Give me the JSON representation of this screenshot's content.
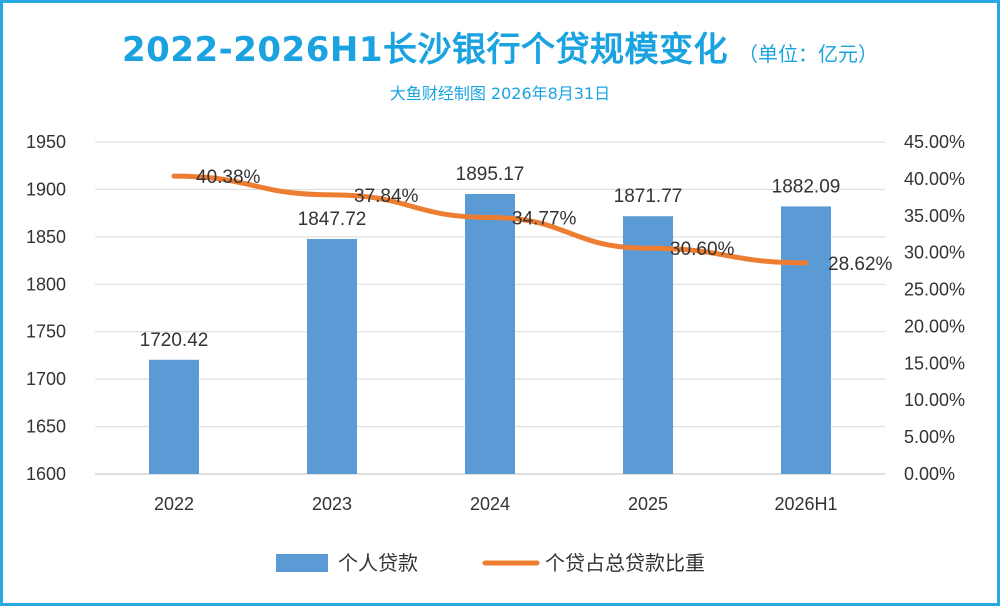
{
  "header": {
    "title": "2022-2026H1长沙银行个贷规模变化",
    "unit": "（单位：亿元）",
    "subtitle": "大鱼财经制图 2026年8月31日"
  },
  "chart_data": {
    "type": "bar",
    "categories": [
      "2022",
      "2023",
      "2024",
      "2025",
      "2026H1"
    ],
    "series": [
      {
        "name": "个人贷款",
        "type": "bar",
        "axis": "left",
        "values": [
          1720.42,
          1847.72,
          1895.17,
          1871.77,
          1882.09
        ],
        "labels": [
          "1720.42",
          "1847.72",
          "1895.17",
          "1871.77",
          "1882.09"
        ],
        "color": "#5b9bd5"
      },
      {
        "name": "个贷占总贷款比重",
        "type": "line",
        "axis": "right",
        "values": [
          40.38,
          37.84,
          34.77,
          30.6,
          28.62
        ],
        "labels": [
          "40.38%",
          "37.84%",
          "34.77%",
          "30.60%",
          "28.62%"
        ],
        "color": "#ed7d31"
      }
    ],
    "y_left": {
      "ylim": [
        1600,
        1950
      ],
      "ticks": [
        "1600",
        "1650",
        "1700",
        "1750",
        "1800",
        "1850",
        "1900",
        "1950"
      ]
    },
    "y_right": {
      "ylim": [
        0,
        45
      ],
      "ticks": [
        "0.00%",
        "5.00%",
        "10.00%",
        "15.00%",
        "20.00%",
        "25.00%",
        "30.00%",
        "35.00%",
        "40.00%",
        "45.00%"
      ]
    },
    "grid": true,
    "legend": "bottom",
    "colors": {
      "frame": "#29a8e0",
      "title": "#1aa3e0",
      "grid": "#d9d9d9"
    }
  }
}
